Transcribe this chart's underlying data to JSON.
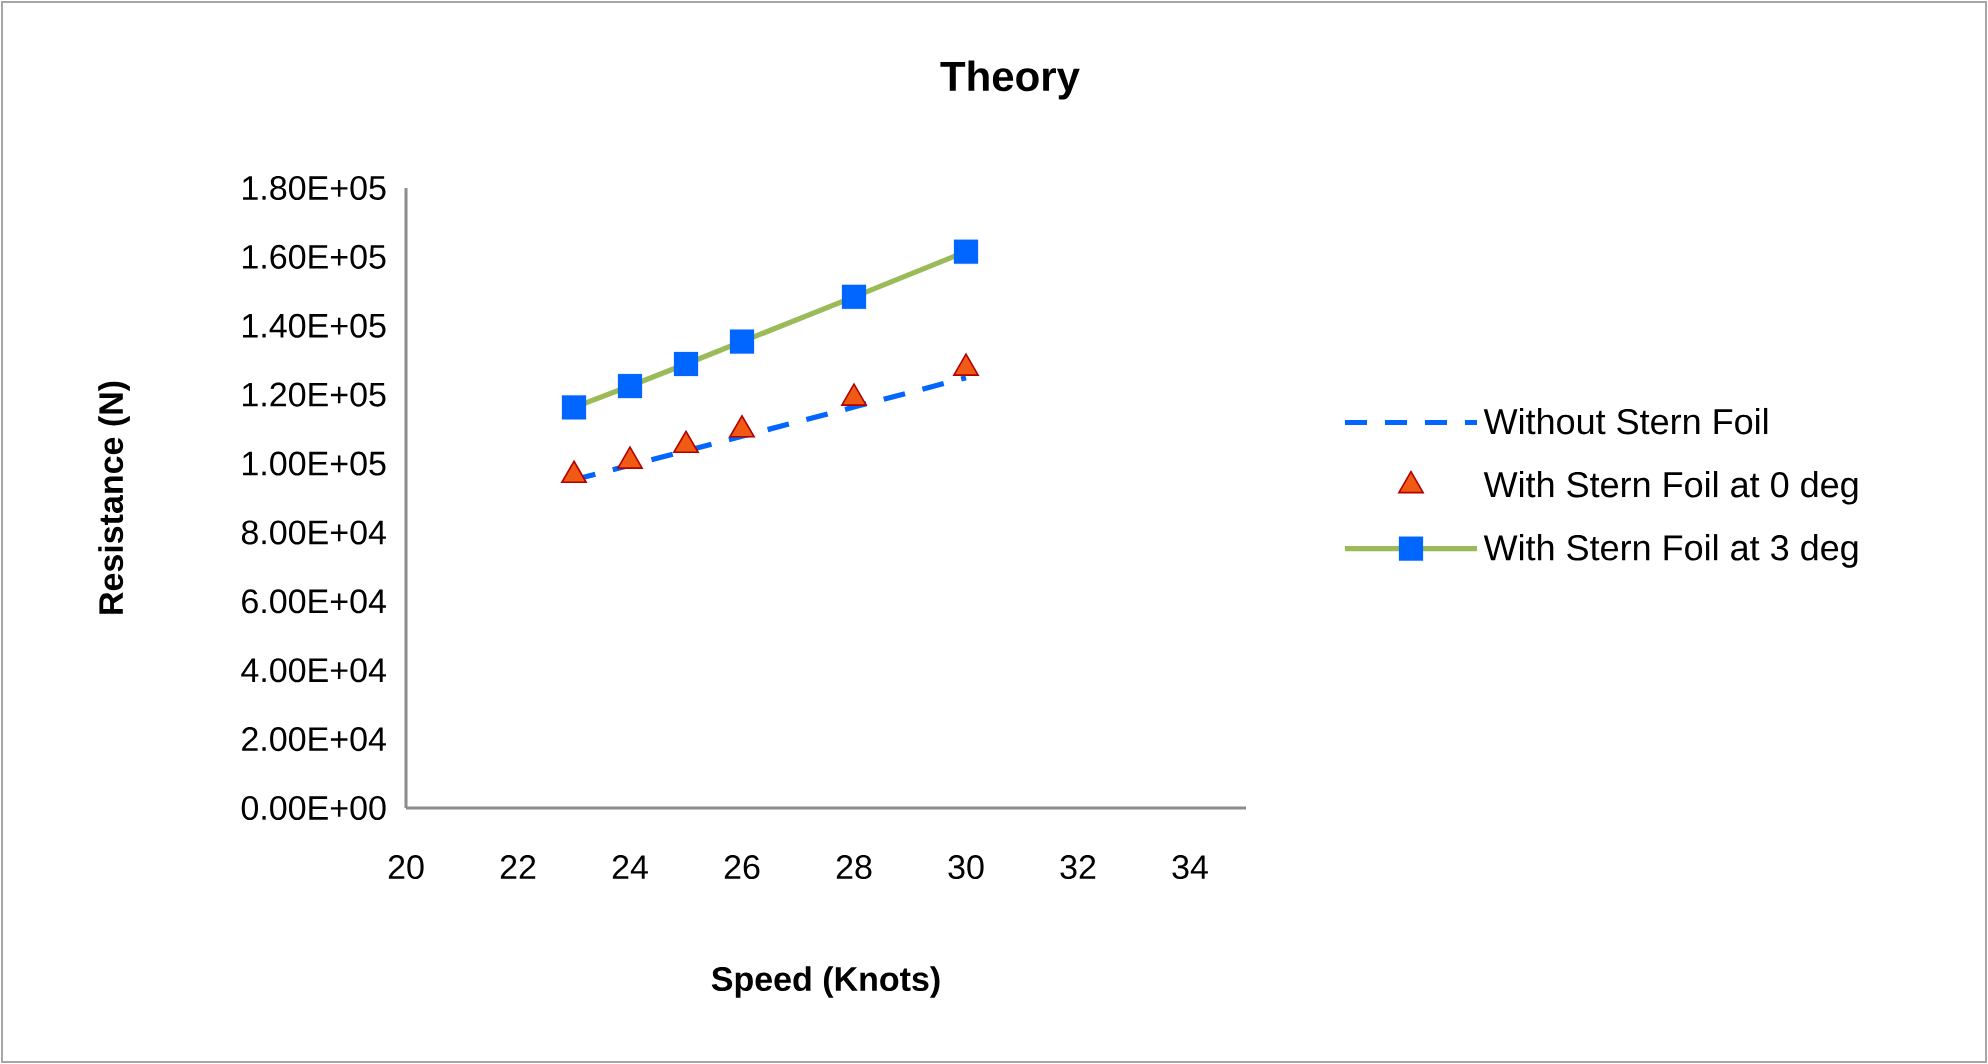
{
  "chart_data": {
    "type": "line",
    "title": "Theory",
    "xlabel": "Speed (Knots)",
    "ylabel": "Resistance (N)",
    "xlim": [
      20,
      35
    ],
    "xticks": [
      20,
      22,
      24,
      26,
      28,
      30,
      32,
      34
    ],
    "ylim": [
      0,
      180000
    ],
    "yticks": [
      {
        "value": 0,
        "label": "0.00E+00"
      },
      {
        "value": 20000,
        "label": "2.00E+04"
      },
      {
        "value": 40000,
        "label": "4.00E+04"
      },
      {
        "value": 60000,
        "label": "6.00E+04"
      },
      {
        "value": 80000,
        "label": "8.00E+04"
      },
      {
        "value": 100000,
        "label": "1.00E+05"
      },
      {
        "value": 120000,
        "label": "1.20E+05"
      },
      {
        "value": 140000,
        "label": "1.40E+05"
      },
      {
        "value": 160000,
        "label": "1.60E+05"
      },
      {
        "value": 180000,
        "label": "1.80E+05"
      }
    ],
    "grid": false,
    "legend": "right",
    "series": [
      {
        "name": "Without Stern Foil",
        "line_style": "dashed",
        "marker": "none",
        "color": "#0066ff",
        "x": [
          23,
          24,
          25,
          26,
          28,
          30
        ],
        "values": [
          95300,
          99500,
          103700,
          107900,
          116400,
          124900
        ]
      },
      {
        "name": "With Stern Foil at 0 deg",
        "type": "scatter",
        "marker": "triangle",
        "color": "#f05a14",
        "x": [
          23,
          24,
          25,
          26,
          28,
          30
        ],
        "values": [
          96600,
          100700,
          105300,
          109800,
          119000,
          127700
        ]
      },
      {
        "name": "With Stern Foil at 3 deg",
        "line_style": "solid",
        "marker": "square",
        "color": "#9bbb59",
        "colors": [
          "#0066ff",
          "#0066ff",
          "#0066ff",
          "#0066ff",
          "#0066ff",
          "#0066ff"
        ],
        "x": [
          23,
          24,
          25,
          26,
          28,
          30
        ],
        "values": [
          116300,
          122500,
          128900,
          135400,
          148400,
          161500
        ]
      }
    ]
  }
}
